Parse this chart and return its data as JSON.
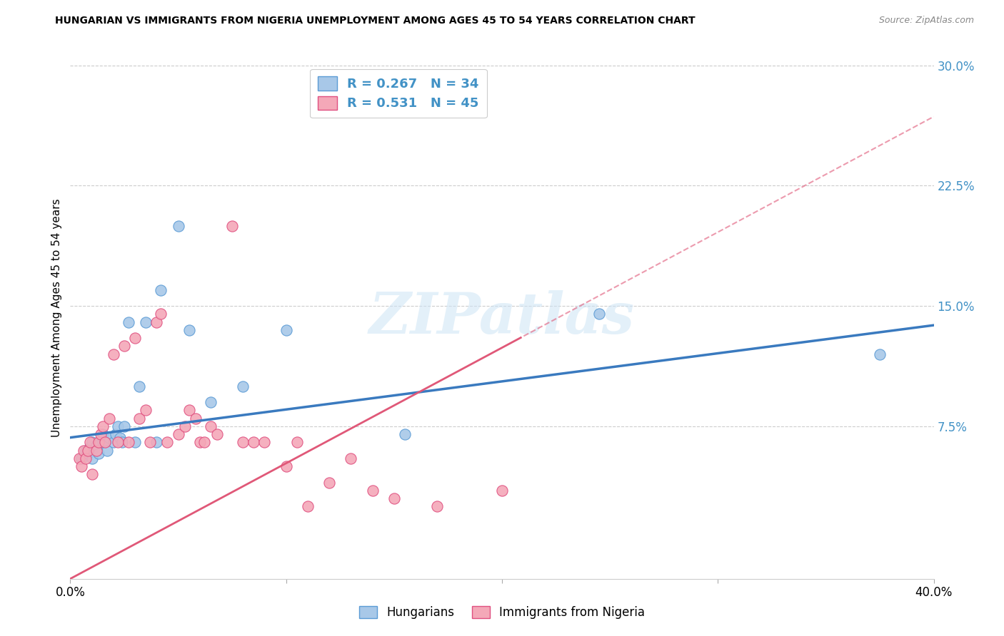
{
  "title": "HUNGARIAN VS IMMIGRANTS FROM NIGERIA UNEMPLOYMENT AMONG AGES 45 TO 54 YEARS CORRELATION CHART",
  "source": "Source: ZipAtlas.com",
  "ylabel": "Unemployment Among Ages 45 to 54 years",
  "xmin": 0.0,
  "xmax": 0.4,
  "ymin": -0.02,
  "ymax": 0.305,
  "yticks": [
    0.075,
    0.15,
    0.225,
    0.3
  ],
  "ytick_labels": [
    "7.5%",
    "15.0%",
    "22.5%",
    "30.0%"
  ],
  "xticks": [
    0.0,
    0.1,
    0.2,
    0.3,
    0.4
  ],
  "watermark": "ZIPatlas",
  "blue_R": 0.267,
  "blue_N": 34,
  "pink_R": 0.531,
  "pink_N": 45,
  "blue_color": "#a8c8e8",
  "pink_color": "#f4a8b8",
  "blue_edge_color": "#5b9bd5",
  "pink_edge_color": "#e05080",
  "blue_line_color": "#3a7abf",
  "pink_line_color": "#e05878",
  "hungarian_x": [
    0.005,
    0.007,
    0.008,
    0.009,
    0.01,
    0.01,
    0.01,
    0.012,
    0.013,
    0.015,
    0.015,
    0.016,
    0.017,
    0.018,
    0.02,
    0.021,
    0.022,
    0.023,
    0.024,
    0.025,
    0.027,
    0.03,
    0.032,
    0.035,
    0.04,
    0.042,
    0.05,
    0.055,
    0.065,
    0.08,
    0.1,
    0.155,
    0.245,
    0.375
  ],
  "hungarian_y": [
    0.055,
    0.06,
    0.058,
    0.062,
    0.065,
    0.06,
    0.055,
    0.063,
    0.058,
    0.065,
    0.07,
    0.065,
    0.06,
    0.068,
    0.065,
    0.07,
    0.075,
    0.068,
    0.065,
    0.075,
    0.14,
    0.065,
    0.1,
    0.14,
    0.065,
    0.16,
    0.2,
    0.135,
    0.09,
    0.1,
    0.135,
    0.07,
    0.145,
    0.12
  ],
  "nigeria_x": [
    0.004,
    0.005,
    0.006,
    0.007,
    0.008,
    0.009,
    0.01,
    0.012,
    0.013,
    0.014,
    0.015,
    0.016,
    0.018,
    0.02,
    0.022,
    0.025,
    0.027,
    0.03,
    0.032,
    0.035,
    0.037,
    0.04,
    0.042,
    0.045,
    0.05,
    0.053,
    0.055,
    0.058,
    0.06,
    0.062,
    0.065,
    0.068,
    0.075,
    0.08,
    0.085,
    0.09,
    0.1,
    0.105,
    0.11,
    0.12,
    0.13,
    0.14,
    0.15,
    0.17,
    0.2
  ],
  "nigeria_y": [
    0.055,
    0.05,
    0.06,
    0.055,
    0.06,
    0.065,
    0.045,
    0.06,
    0.065,
    0.07,
    0.075,
    0.065,
    0.08,
    0.12,
    0.065,
    0.125,
    0.065,
    0.13,
    0.08,
    0.085,
    0.065,
    0.14,
    0.145,
    0.065,
    0.07,
    0.075,
    0.085,
    0.08,
    0.065,
    0.065,
    0.075,
    0.07,
    0.2,
    0.065,
    0.065,
    0.065,
    0.05,
    0.065,
    0.025,
    0.04,
    0.055,
    0.035,
    0.03,
    0.025,
    0.035
  ],
  "blue_intercept": 0.068,
  "blue_slope": 0.175,
  "pink_intercept": -0.02,
  "pink_slope": 0.72
}
